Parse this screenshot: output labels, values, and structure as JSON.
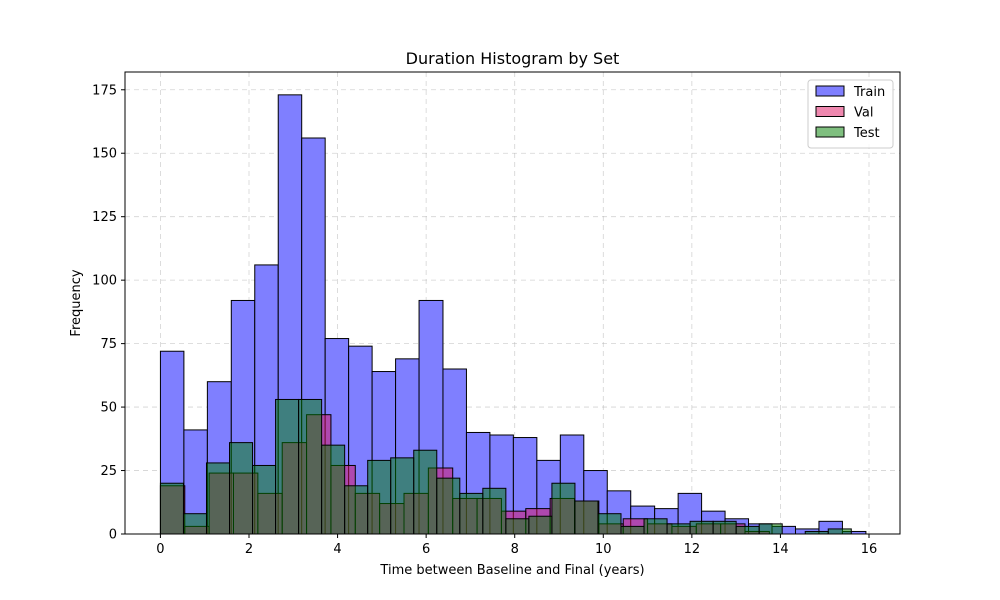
{
  "chart_data": {
    "type": "bar",
    "title": "Duration Histogram by Set",
    "xlabel": "Time between Baseline and Final (years)",
    "ylabel": "Frequency",
    "xlim": [
      -0.8,
      16.7
    ],
    "ylim": [
      0,
      182
    ],
    "xticks": [
      0,
      2,
      4,
      6,
      8,
      10,
      12,
      14,
      16
    ],
    "yticks": [
      0,
      25,
      50,
      75,
      100,
      125,
      150,
      175
    ],
    "grid": true,
    "legend_position": "top-right",
    "series": [
      {
        "name": "Train",
        "color": "#7f7fff",
        "bin_edges": [
          0,
          0.53,
          1.06,
          1.6,
          2.13,
          2.66,
          3.19,
          3.72,
          4.25,
          4.78,
          5.31,
          5.84,
          6.38,
          6.91,
          7.44,
          7.97,
          8.5,
          9.03,
          9.56,
          10.09,
          10.62,
          11.16,
          11.69,
          12.22,
          12.75,
          13.28,
          13.81,
          14.34,
          14.87,
          15.4,
          15.93
        ],
        "counts": [
          72,
          41,
          60,
          92,
          106,
          173,
          156,
          77,
          74,
          64,
          69,
          92,
          65,
          40,
          39,
          38,
          29,
          39,
          25,
          17,
          11,
          10,
          16,
          9,
          6,
          4,
          3,
          2,
          5,
          1
        ]
      },
      {
        "name": "Val",
        "color": "#f08080",
        "bin_edges": [
          0,
          0.55,
          1.1,
          1.65,
          2.2,
          2.75,
          3.3,
          3.85,
          4.4,
          4.95,
          5.5,
          6.05,
          6.6,
          7.15,
          7.7,
          8.25,
          8.8,
          9.35,
          9.9,
          10.45,
          11.0,
          11.55,
          12.1,
          12.65,
          13.2,
          13.75
        ],
        "counts": [
          19,
          3,
          24,
          24,
          16,
          36,
          47,
          27,
          16,
          12,
          16,
          26,
          14,
          14,
          9,
          10,
          14,
          13,
          4,
          6,
          4,
          3,
          4,
          4,
          1
        ]
      },
      {
        "name": "Test",
        "color": "#7fbf7f",
        "bin_edges": [
          0,
          0.52,
          1.04,
          1.56,
          2.08,
          2.6,
          3.12,
          3.64,
          4.16,
          4.68,
          5.2,
          5.72,
          6.24,
          6.76,
          7.28,
          7.8,
          8.32,
          8.84,
          9.36,
          9.88,
          10.4,
          10.92,
          11.44,
          11.96,
          12.48,
          13.0,
          13.52,
          14.04,
          14.56,
          15.08,
          15.6
        ],
        "counts": [
          20,
          8,
          28,
          36,
          27,
          53,
          53,
          35,
          19,
          29,
          30,
          33,
          22,
          16,
          18,
          6,
          7,
          20,
          13,
          8,
          3,
          6,
          4,
          5,
          5,
          3,
          4,
          0,
          1,
          2
        ]
      }
    ]
  }
}
